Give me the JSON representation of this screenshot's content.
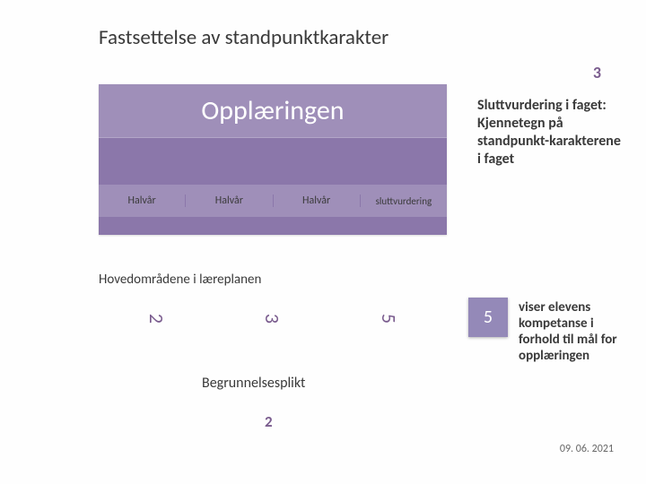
{
  "title": "Fastsettelse av standpunktkarakter",
  "page_top": "3",
  "main_box": {
    "header": "Opplæringen",
    "cells": [
      "Halvår",
      "Halvår",
      "Halvår",
      "sluttvurdering"
    ],
    "bg_color": "#8b77aa",
    "header_bg": "#9f8fb9",
    "text_color": "#ffffff"
  },
  "sidebar1": "Sluttvurdering i faget: Kjennetegn på standpunkt-karakterene i faget",
  "hovedomr": "Hovedområdene i læreplanen",
  "rotated_numbers": [
    "2",
    "3",
    "5"
  ],
  "box5": "5",
  "sidebar2": "viser elevens kompetanse i forhold til mål for opplæringen",
  "begrunn": "Begrunnelsesplikt",
  "page_bottom": "2",
  "date": "09. 06. 2021",
  "colors": {
    "accent": "#7a5c8e",
    "box_bg": "#9489b8",
    "text": "#3a3a3a"
  }
}
